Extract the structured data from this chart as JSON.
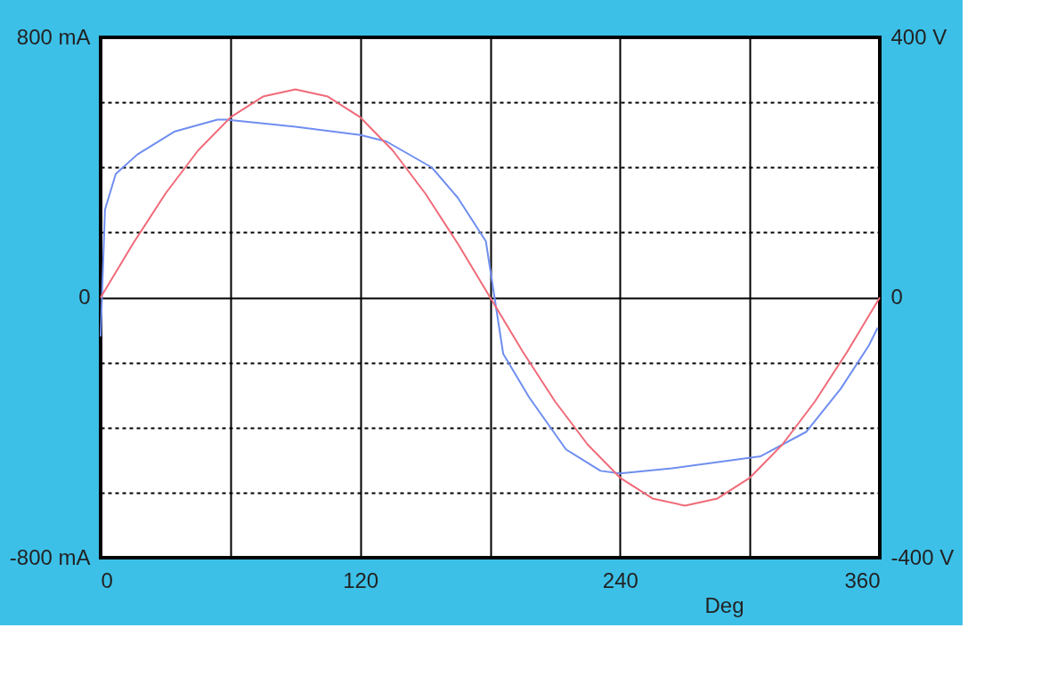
{
  "chart_data": {
    "type": "line",
    "xlabel": "Deg",
    "xlim": [
      0,
      360
    ],
    "xticks": [
      0,
      {
        "value": 60,
        "label": null
      },
      120,
      {
        "value": 180,
        "label": null
      },
      240,
      {
        "value": 300,
        "label": null
      },
      360
    ],
    "ylim": [
      -800,
      800
    ],
    "yticks": [
      {
        "value": -800,
        "label": "-800 mA"
      },
      {
        "value": -600,
        "label": null
      },
      {
        "value": -400,
        "label": null
      },
      {
        "value": -200,
        "label": null
      },
      {
        "value": 0,
        "label": "0"
      },
      {
        "value": 200,
        "label": null
      },
      {
        "value": 400,
        "label": null
      },
      {
        "value": 600,
        "label": null
      },
      {
        "value": 800,
        "label": "800 mA"
      }
    ],
    "y2lim": [
      -400,
      400
    ],
    "y2ticks": [
      {
        "value": -400,
        "label": "-400 V"
      },
      {
        "value": 0,
        "label": "0"
      },
      {
        "value": 400,
        "label": "400 V"
      }
    ],
    "grid": true,
    "marker": "none",
    "line_style": "solid",
    "series": [
      {
        "color": "#6f8ef0",
        "x": [
          0,
          2,
          7,
          17,
          34,
          54,
          58,
          90,
          120,
          132,
          153,
          165,
          178,
          182,
          186,
          198,
          215,
          231,
          240,
          264,
          305,
          326,
          342,
          355,
          359
        ],
        "values": [
          -120,
          270,
          380,
          440,
          510,
          547,
          547,
          525,
          500,
          480,
          400,
          307,
          173,
          0,
          -173,
          -307,
          -467,
          -533,
          -541,
          -525,
          -488,
          -413,
          -280,
          -147,
          -93
        ]
      },
      {
        "color": "#f06a78",
        "axis": "y2",
        "x": [
          0,
          15,
          30,
          45,
          60,
          75,
          90,
          105,
          120,
          135,
          150,
          165,
          180,
          195,
          210,
          225,
          240,
          255,
          270,
          285,
          300,
          315,
          330,
          345,
          360
        ],
        "values": [
          0,
          83,
          160,
          226,
          277,
          309,
          320,
          309,
          277,
          226,
          160,
          83,
          0,
          -83,
          -160,
          -226,
          -277,
          -309,
          -320,
          -309,
          -277,
          -226,
          -160,
          -83,
          0
        ]
      }
    ]
  }
}
